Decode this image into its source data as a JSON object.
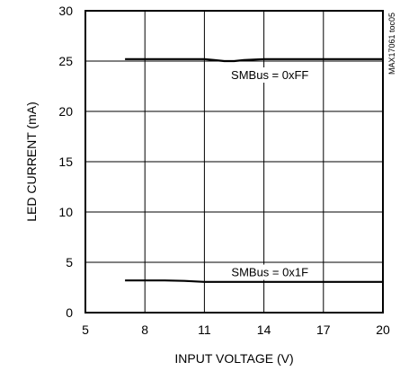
{
  "chart_data": {
    "type": "line",
    "title": "",
    "xlabel": "INPUT VOLTAGE (V)",
    "ylabel": "LED CURRENT (mA)",
    "xlim": [
      5,
      20
    ],
    "ylim": [
      0,
      30
    ],
    "xticks": [
      5,
      8,
      11,
      14,
      17,
      20
    ],
    "yticks": [
      0,
      5,
      10,
      15,
      20,
      25,
      30
    ],
    "grid": true,
    "side_label": "MAX17061 toc05",
    "series": [
      {
        "name": "SMBus = 0xFF",
        "x": [
          7,
          9,
          11,
          11.5,
          12,
          12.5,
          13,
          14,
          16,
          18,
          20
        ],
        "y": [
          25.2,
          25.2,
          25.2,
          25.1,
          25.0,
          25.0,
          25.1,
          25.2,
          25.2,
          25.2,
          25.2
        ]
      },
      {
        "name": "SMBus = 0x1F",
        "x": [
          7,
          8,
          9,
          10,
          11,
          12,
          14,
          16,
          18,
          20
        ],
        "y": [
          3.2,
          3.2,
          3.2,
          3.15,
          3.05,
          3.05,
          3.05,
          3.05,
          3.05,
          3.05
        ]
      }
    ],
    "annotations": [
      {
        "text": "SMBus = 0xFF",
        "x": 14.3,
        "y": 23.3
      },
      {
        "text": "SMBus = 0x1F",
        "x": 14.3,
        "y": 3.7
      }
    ]
  }
}
